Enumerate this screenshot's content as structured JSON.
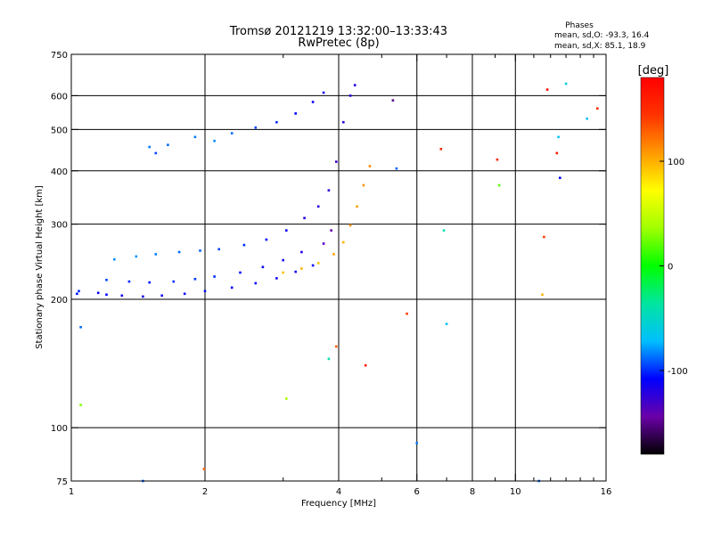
{
  "chart_data": {
    "type": "scatter",
    "title": "Tromsø 20121219 13:32:00–13:33:43",
    "subtitle": "RwPretec (8p)",
    "xlabel": "Frequency [MHz]",
    "ylabel": "Stationary phase Virtual Height [km]",
    "xscale": "log",
    "yscale": "log",
    "xlim": [
      1,
      16
    ],
    "ylim": [
      75,
      750
    ],
    "xticks": [
      1,
      2,
      4,
      6,
      8,
      10,
      16
    ],
    "yticks": [
      75,
      100,
      200,
      300,
      400,
      500,
      600,
      750
    ],
    "x_minor_ticks": [
      3,
      5,
      7,
      9,
      11,
      12,
      13,
      14,
      15
    ],
    "grid": true,
    "stats": {
      "heading": "Phases",
      "line_o": "mean, sd,O: -93.3, 16.4",
      "line_x": "mean, sd,X: 85.1, 18.9"
    },
    "colorbar": {
      "label": "[deg]",
      "min": -180,
      "max": 180,
      "ticks": [
        100,
        0,
        -100
      ],
      "colors": [
        "#000000",
        "#6a00a8",
        "#0000ff",
        "#00bfff",
        "#00e5a0",
        "#00ff00",
        "#a0ff00",
        "#ffff00",
        "#ff9900",
        "#ff3300",
        "#ff0000"
      ]
    },
    "points": [
      {
        "x": 1.03,
        "y": 206,
        "c": -105
      },
      {
        "x": 1.04,
        "y": 209,
        "c": -100
      },
      {
        "x": 1.15,
        "y": 207,
        "c": -110
      },
      {
        "x": 1.2,
        "y": 205,
        "c": -108
      },
      {
        "x": 1.3,
        "y": 204,
        "c": -112
      },
      {
        "x": 1.45,
        "y": 203,
        "c": -115
      },
      {
        "x": 1.6,
        "y": 204,
        "c": -110
      },
      {
        "x": 1.8,
        "y": 206,
        "c": -108
      },
      {
        "x": 2.0,
        "y": 209,
        "c": -105
      },
      {
        "x": 2.3,
        "y": 213,
        "c": -110
      },
      {
        "x": 2.6,
        "y": 218,
        "c": -108
      },
      {
        "x": 2.9,
        "y": 224,
        "c": -112
      },
      {
        "x": 3.2,
        "y": 232,
        "c": -115
      },
      {
        "x": 3.5,
        "y": 240,
        "c": -110
      },
      {
        "x": 1.2,
        "y": 222,
        "c": -95
      },
      {
        "x": 1.35,
        "y": 220,
        "c": -100
      },
      {
        "x": 1.5,
        "y": 219,
        "c": -105
      },
      {
        "x": 1.7,
        "y": 220,
        "c": -100
      },
      {
        "x": 1.9,
        "y": 223,
        "c": -98
      },
      {
        "x": 2.1,
        "y": 226,
        "c": -100
      },
      {
        "x": 2.4,
        "y": 231,
        "c": -105
      },
      {
        "x": 2.7,
        "y": 238,
        "c": -110
      },
      {
        "x": 3.0,
        "y": 247,
        "c": -115
      },
      {
        "x": 3.3,
        "y": 258,
        "c": -118
      },
      {
        "x": 1.25,
        "y": 248,
        "c": -82
      },
      {
        "x": 1.4,
        "y": 252,
        "c": -80
      },
      {
        "x": 1.55,
        "y": 255,
        "c": -85
      },
      {
        "x": 1.75,
        "y": 258,
        "c": -88
      },
      {
        "x": 1.95,
        "y": 260,
        "c": -90
      },
      {
        "x": 2.15,
        "y": 262,
        "c": -95
      },
      {
        "x": 2.45,
        "y": 268,
        "c": -100
      },
      {
        "x": 2.75,
        "y": 276,
        "c": -105
      },
      {
        "x": 3.05,
        "y": 290,
        "c": -112
      },
      {
        "x": 3.35,
        "y": 310,
        "c": -118
      },
      {
        "x": 3.6,
        "y": 330,
        "c": -122
      },
      {
        "x": 3.8,
        "y": 360,
        "c": -125
      },
      {
        "x": 3.95,
        "y": 420,
        "c": -128
      },
      {
        "x": 4.1,
        "y": 520,
        "c": -125
      },
      {
        "x": 4.25,
        "y": 600,
        "c": -120
      },
      {
        "x": 4.35,
        "y": 635,
        "c": -118
      },
      {
        "x": 3.7,
        "y": 270,
        "c": -135
      },
      {
        "x": 3.85,
        "y": 290,
        "c": -140
      },
      {
        "x": 3.0,
        "y": 231,
        "c": 95
      },
      {
        "x": 3.3,
        "y": 236,
        "c": 100
      },
      {
        "x": 3.6,
        "y": 243,
        "c": 95
      },
      {
        "x": 3.9,
        "y": 255,
        "c": 105
      },
      {
        "x": 4.1,
        "y": 272,
        "c": 100
      },
      {
        "x": 4.25,
        "y": 298,
        "c": 110
      },
      {
        "x": 4.4,
        "y": 330,
        "c": 105
      },
      {
        "x": 4.55,
        "y": 370,
        "c": 110
      },
      {
        "x": 4.7,
        "y": 410,
        "c": 115
      },
      {
        "x": 1.9,
        "y": 480,
        "c": -85
      },
      {
        "x": 2.1,
        "y": 470,
        "c": -82
      },
      {
        "x": 2.3,
        "y": 490,
        "c": -88
      },
      {
        "x": 2.6,
        "y": 505,
        "c": -95
      },
      {
        "x": 2.9,
        "y": 520,
        "c": -100
      },
      {
        "x": 3.2,
        "y": 545,
        "c": -108
      },
      {
        "x": 3.5,
        "y": 580,
        "c": -112
      },
      {
        "x": 3.7,
        "y": 610,
        "c": -115
      },
      {
        "x": 1.5,
        "y": 455,
        "c": -85
      },
      {
        "x": 1.55,
        "y": 440,
        "c": -95
      },
      {
        "x": 1.65,
        "y": 460,
        "c": -88
      },
      {
        "x": 1.05,
        "y": 172,
        "c": -88
      },
      {
        "x": 1.05,
        "y": 113,
        "c": 30
      },
      {
        "x": 1.45,
        "y": 75,
        "c": -90
      },
      {
        "x": 1.99,
        "y": 80,
        "c": 130
      },
      {
        "x": 3.05,
        "y": 117,
        "c": 40
      },
      {
        "x": 3.95,
        "y": 155,
        "c": 130
      },
      {
        "x": 3.8,
        "y": 145,
        "c": -40
      },
      {
        "x": 4.6,
        "y": 140,
        "c": 160
      },
      {
        "x": 5.3,
        "y": 585,
        "c": -150
      },
      {
        "x": 5.4,
        "y": 405,
        "c": -90
      },
      {
        "x": 5.7,
        "y": 185,
        "c": 140
      },
      {
        "x": 6.0,
        "y": 92,
        "c": -85
      },
      {
        "x": 6.8,
        "y": 450,
        "c": 150
      },
      {
        "x": 6.9,
        "y": 290,
        "c": -40
      },
      {
        "x": 7.0,
        "y": 175,
        "c": -70
      },
      {
        "x": 9.1,
        "y": 425,
        "c": 150
      },
      {
        "x": 9.2,
        "y": 370,
        "c": 20
      },
      {
        "x": 11.5,
        "y": 205,
        "c": 100
      },
      {
        "x": 11.6,
        "y": 280,
        "c": 140
      },
      {
        "x": 11.8,
        "y": 620,
        "c": 175
      },
      {
        "x": 12.5,
        "y": 480,
        "c": -70
      },
      {
        "x": 12.4,
        "y": 440,
        "c": 160
      },
      {
        "x": 12.6,
        "y": 385,
        "c": -110
      },
      {
        "x": 13.0,
        "y": 640,
        "c": -60
      },
      {
        "x": 14.5,
        "y": 530,
        "c": -70
      },
      {
        "x": 15.3,
        "y": 560,
        "c": 150
      },
      {
        "x": 11.3,
        "y": 75,
        "c": -90
      }
    ]
  }
}
